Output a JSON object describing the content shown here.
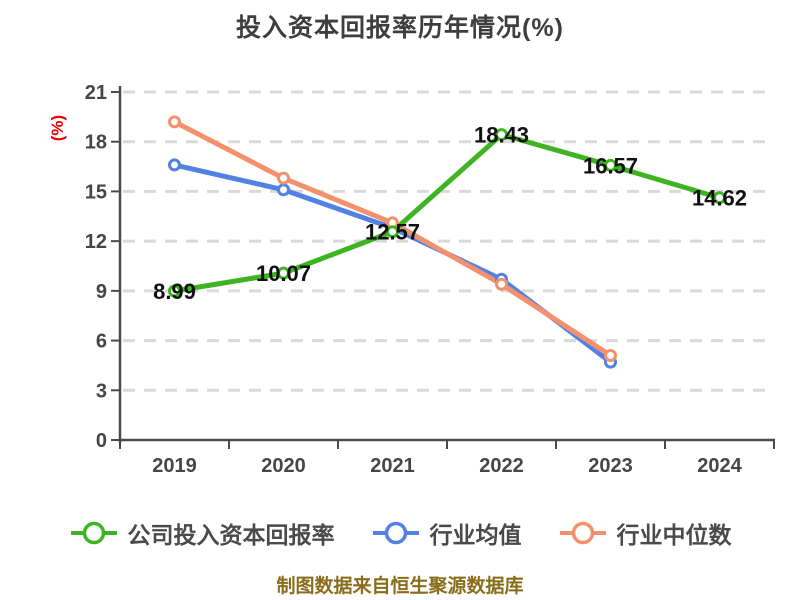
{
  "title": "投入资本回报率历年情况(%)",
  "footer": "制图数据来自恒生聚源数据库",
  "colors": {
    "accent_green": "#3FB422",
    "accent_blue": "#5182E3",
    "accent_orange": "#F4906C",
    "title_text": "#3E3E3E",
    "axis_text": "#464646",
    "axis_line": "#4A4A4A",
    "gridline": "#D9D9D9",
    "data_label": "#111111",
    "ylabel_red": "#EE0000",
    "footer_text": "#8A6D1A",
    "background": "#FFFFFF",
    "marker_fill": "#FFFFFF"
  },
  "chart_data": {
    "type": "line",
    "title": "投入资本回报率历年情况(%)",
    "xlabel": "",
    "ylabel": "(%)",
    "categories": [
      "2019",
      "2020",
      "2021",
      "2022",
      "2023",
      "2024"
    ],
    "y_ticks": [
      0,
      3,
      6,
      9,
      12,
      15,
      18,
      21
    ],
    "ylim": [
      0,
      21
    ],
    "grid": "horizontal-dashed",
    "legend_position": "bottom",
    "series": [
      {
        "name": "公司投入资本回报率",
        "color": "#3FB422",
        "show_labels": true,
        "values": [
          8.99,
          10.07,
          12.57,
          18.43,
          16.57,
          14.62
        ],
        "labels": [
          "8.99",
          "10.07",
          "12.57",
          "18.43",
          "16.57",
          "14.62"
        ]
      },
      {
        "name": "行业均值",
        "color": "#5182E3",
        "show_labels": false,
        "values": [
          16.6,
          15.1,
          12.8,
          9.7,
          4.7
        ]
      },
      {
        "name": "行业中位数",
        "color": "#F4906C",
        "show_labels": false,
        "values": [
          19.2,
          15.8,
          13.1,
          9.4,
          5.1
        ]
      }
    ]
  }
}
